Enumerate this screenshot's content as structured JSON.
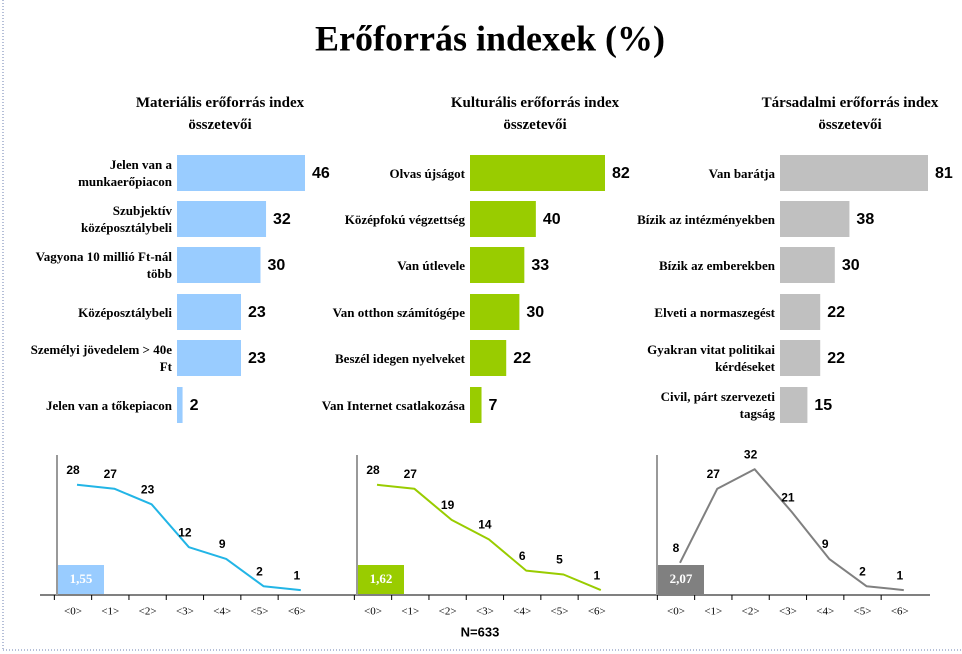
{
  "title": "Erőforrás indexek (%)",
  "note": "N=633",
  "chart_data": [
    {
      "type": "hbar",
      "title": "Materiális erőforrás index összetevői",
      "color": "#99ccff",
      "categories": [
        "Jelen van a munkaerőpiacon",
        "Szubjektív középosztálybeli",
        "Vagyona 10 millió Ft-nál több",
        "Középosztálybeli",
        "Személyi jövedelem > 40e Ft",
        "Jelen van a tőkepiacon"
      ],
      "values": [
        46,
        32,
        30,
        23,
        23,
        2
      ]
    },
    {
      "type": "hbar",
      "title": "Kulturális erőforrás index összetevői",
      "color": "#99cc00",
      "categories": [
        "Olvas újságot",
        "Középfokú végzettség",
        "Van útlevele",
        "Van otthon számítógépe",
        "Beszél idegen nyelveket",
        "Van Internet csatlakozása"
      ],
      "values": [
        82,
        40,
        33,
        30,
        22,
        7
      ]
    },
    {
      "type": "hbar",
      "title": "Társadalmi erőforrás index összetevői",
      "color": "#c0c0c0",
      "categories": [
        "Van barátja",
        "Bízik az intézményekben",
        "Bízik az emberekben",
        "Elveti a normaszegést",
        "Gyakran vitat politikai kérdéseket",
        "Civil, párt szervezeti tagság"
      ],
      "values": [
        81,
        38,
        30,
        22,
        22,
        15
      ]
    },
    {
      "type": "line",
      "color": "#22b5e6",
      "mean_label": "1,55",
      "mean_color": "#99ccff",
      "categories": [
        "<0>",
        "<1>",
        "<2>",
        "<3>",
        "<4>",
        "<5>",
        "<6>"
      ],
      "values": [
        28,
        27,
        23,
        12,
        9,
        2,
        1
      ]
    },
    {
      "type": "line",
      "color": "#99cc00",
      "mean_label": "1,62",
      "mean_color": "#99cc00",
      "categories": [
        "<0>",
        "<1>",
        "<2>",
        "<3>",
        "<4>",
        "<5>",
        "<6>"
      ],
      "values": [
        28,
        27,
        19,
        14,
        6,
        5,
        1
      ]
    },
    {
      "type": "line",
      "color": "#808080",
      "mean_label": "2,07",
      "mean_color": "#808080",
      "categories": [
        "<0>",
        "<1>",
        "<2>",
        "<3>",
        "<4>",
        "<5>",
        "<6>"
      ],
      "values": [
        8,
        27,
        32,
        21,
        9,
        2,
        1
      ]
    }
  ]
}
